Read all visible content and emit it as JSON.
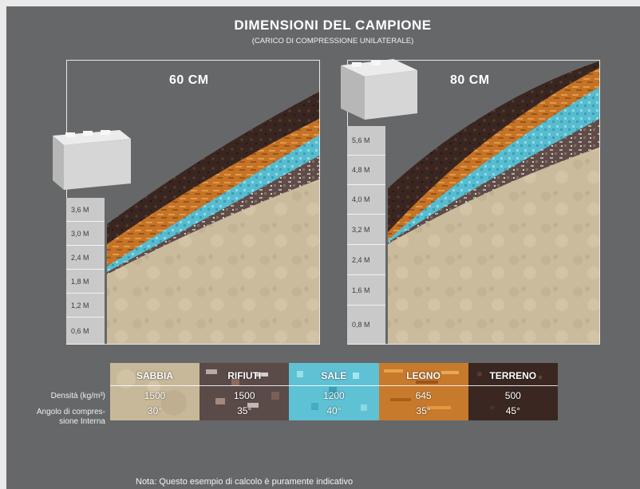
{
  "header": {
    "title": "DIMENSIONI DEL CAMPIONE",
    "subtitle": "(CARICO DI COMPRESSIONE UNILATERALE)"
  },
  "panels": [
    {
      "label": "60 CM",
      "scale": [
        "3,6 M",
        "3,0 M",
        "2,4 M",
        "1,8 M",
        "1,2 M",
        "0,6 M"
      ]
    },
    {
      "label": "80 CM",
      "scale": [
        "5,6 M",
        "4,8 M",
        "4,0 M",
        "3,2 M",
        "2,4 M",
        "1,6 M",
        "0,8 M"
      ]
    }
  ],
  "legend": {
    "row_labels": {
      "density": "Densità (kg/m³)",
      "angle_line1": "Angolo di compres-",
      "angle_line2": "sione Interna"
    },
    "materials": [
      {
        "name": "SABBIA",
        "density": "1500",
        "angle": "30°",
        "color": "#c8b89a"
      },
      {
        "name": "RIFIUTI",
        "density": "1500",
        "angle": "35°",
        "color": "#5a4a48"
      },
      {
        "name": "SALE",
        "density": "1200",
        "angle": "40°",
        "color": "#5fc1d4"
      },
      {
        "name": "LEGNO",
        "density": "645",
        "angle": "35°",
        "color": "#c87a2c"
      },
      {
        "name": "TERRENO",
        "density": "500",
        "angle": "45°",
        "color": "#3a2722"
      }
    ]
  },
  "footer": {
    "note": "Nota: Questo esempio di calcolo è puramente indicativo"
  }
}
